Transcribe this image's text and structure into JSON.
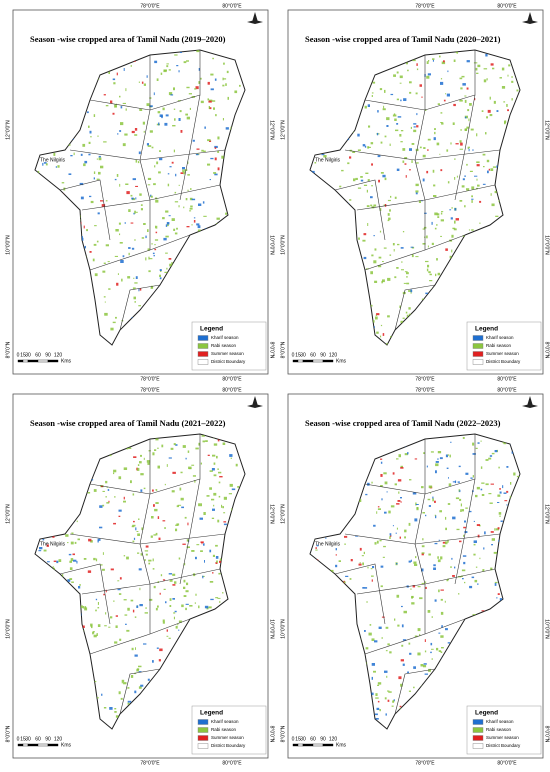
{
  "panels": [
    {
      "title": "Season -wise cropped area of Tamil Nadu (2019–2020)"
    },
    {
      "title": "Season -wise cropped area of Tamil Nadu (2020–2021)"
    },
    {
      "title": "Season -wise cropped area of Tamil Nadu (2021–2022)"
    },
    {
      "title": "Season -wise cropped area of Tamil Nadu (2022–2023)"
    }
  ],
  "longitudes": [
    "78°0'0\"E",
    "80°0'0\"E"
  ],
  "latitudes": [
    "12°0'0\"N",
    "10°0'0\"N",
    "8°0'0\"N"
  ],
  "legend": {
    "title": "Legend",
    "items": [
      {
        "label": "Kharif season",
        "color": "#1f6fd0"
      },
      {
        "label": "Rabi season",
        "color": "#8cc63f"
      },
      {
        "label": "Summer season",
        "color": "#e02020"
      },
      {
        "label": "District Boundary",
        "color": "#ffffff"
      }
    ]
  },
  "scale": {
    "ticks": [
      "0",
      "15",
      "30",
      "60",
      "90",
      "120"
    ],
    "unit": "Kms"
  },
  "place_label": "The Nilgiris"
}
